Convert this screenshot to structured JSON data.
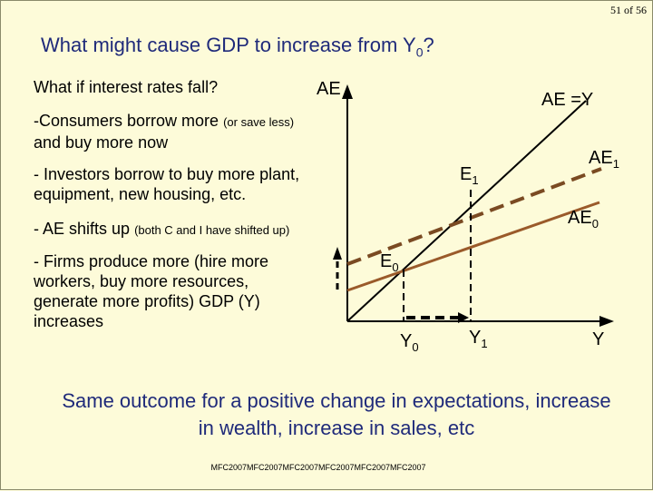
{
  "page_number": "51 of 56",
  "title": {
    "text": "What might cause GDP to increase from Y",
    "sub": "0",
    "suffix": "?"
  },
  "bullets": {
    "b1": "What if interest rates fall?",
    "b2_main": "-Consumers borrow more ",
    "b2_small": "(or save less)",
    "b2_rest": "and buy more now",
    "b3": "- Investors borrow to buy more plant, equipment, new housing, etc.",
    "b4_main": "- AE shifts up ",
    "b4_small": "(both C and I have shifted up)",
    "b5": "- Firms produce more (hire more workers, buy more resources, generate more profits) GDP (Y) increases"
  },
  "graph_labels": {
    "ae_axis": "AE",
    "ae_eq_y": "AE =Y",
    "ae1": {
      "main": "AE",
      "sub": "1"
    },
    "ae0": {
      "main": "AE",
      "sub": "0"
    },
    "e1": {
      "main": "E",
      "sub": "1"
    },
    "e0": {
      "main": "E",
      "sub": "0"
    },
    "y0": {
      "main": "Y",
      "sub": "0"
    },
    "y1": {
      "main": "Y",
      "sub": "1"
    },
    "y_axis": "Y"
  },
  "outcome": "Same outcome for a positive change in expectations, increase in wealth, increase in sales, etc",
  "footer": "MFC2007MFC2007MFC2007MFC2007MFC2007MFC2007",
  "colors": {
    "background": "#fdfbd9",
    "title": "#1f2a7a",
    "ae_curve": "#9a5a2a",
    "ae1_curve": "#7a4a22",
    "axis": "#000000"
  }
}
